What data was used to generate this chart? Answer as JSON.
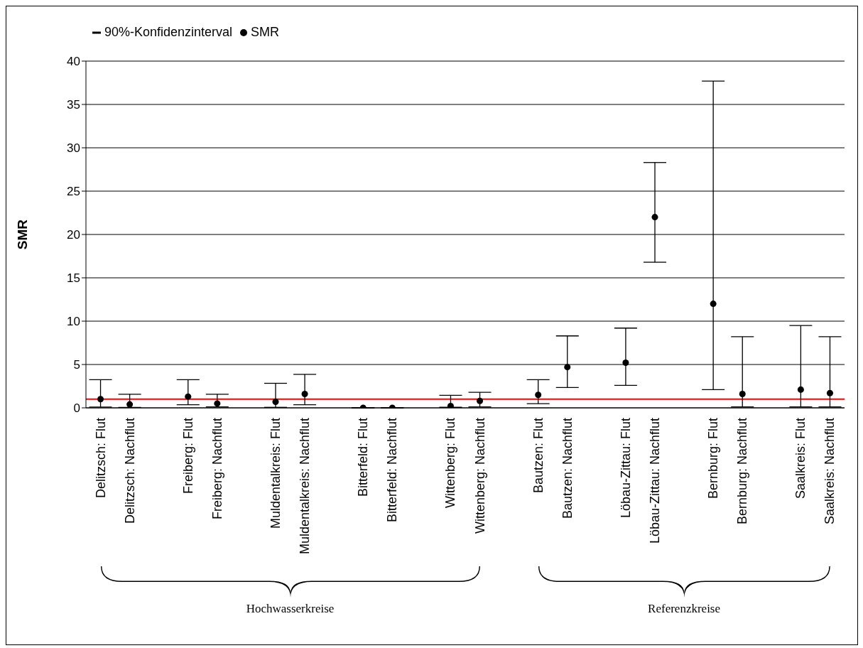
{
  "chart_data": {
    "type": "scatter",
    "ylabel": "SMR",
    "categories": [
      "Delitzsch: Flut",
      "Delitzsch: Nachflut",
      null,
      "Freiberg: Flut",
      "Freiberg: Nachflut",
      null,
      "Muldentalkreis: Flut",
      "Muldentalkreis: Nachflut",
      null,
      "Bitterfeld: Flut",
      "Bitterfeld: Nachflut",
      null,
      "Wittenberg: Flut",
      "Wittenberg: Nachflut",
      null,
      "Bautzen: Flut",
      "Bautzen: Nachflut",
      null,
      "Löbau-Zittau: Flut",
      "Löbau-Zittau: Nachflut",
      null,
      "Bernburg: Flut",
      "Bernburg: Nachflut",
      null,
      "Saalkreis: Flut",
      "Saalkreis: Nachflut"
    ],
    "series": [
      {
        "name": "SMR",
        "color": "#000000",
        "values": [
          1.0,
          0.4,
          null,
          1.3,
          0.5,
          null,
          0.7,
          1.6,
          null,
          0,
          0,
          null,
          0.2,
          0.8,
          null,
          1.5,
          4.7,
          null,
          5.2,
          22,
          null,
          12,
          1.6,
          null,
          2.1,
          1.7
        ],
        "errors": [
          [
            0.1,
            3.25
          ],
          [
            0.05,
            1.57
          ],
          null,
          [
            0.36,
            3.25
          ],
          [
            0.12,
            1.57
          ],
          null,
          [
            0.06,
            2.83
          ],
          [
            0.36,
            3.86
          ],
          null,
          null,
          null,
          null,
          [
            0.06,
            1.45
          ],
          [
            0.12,
            1.8
          ],
          null,
          [
            0.48,
            3.25
          ],
          [
            2.35,
            8.3
          ],
          null,
          [
            2.6,
            9.2
          ],
          [
            16.8,
            28.3
          ],
          null,
          [
            2.1,
            37.7
          ],
          [
            0.12,
            8.2
          ],
          null,
          [
            0.12,
            9.5
          ],
          [
            0.12,
            8.2
          ]
        ]
      }
    ],
    "ylim": [
      0,
      40
    ],
    "yticks": [
      0,
      5,
      10,
      15,
      20,
      25,
      30,
      35,
      40
    ],
    "grid": "y",
    "marker": "circle",
    "legend": "top left",
    "ref_lines": [
      {
        "axis": "y",
        "value": 1,
        "color": "#ff0000"
      }
    ],
    "annotations": [
      "90%-Konfidenzinterval",
      "Hochwasserkreise",
      "Referenzkreise"
    ]
  }
}
